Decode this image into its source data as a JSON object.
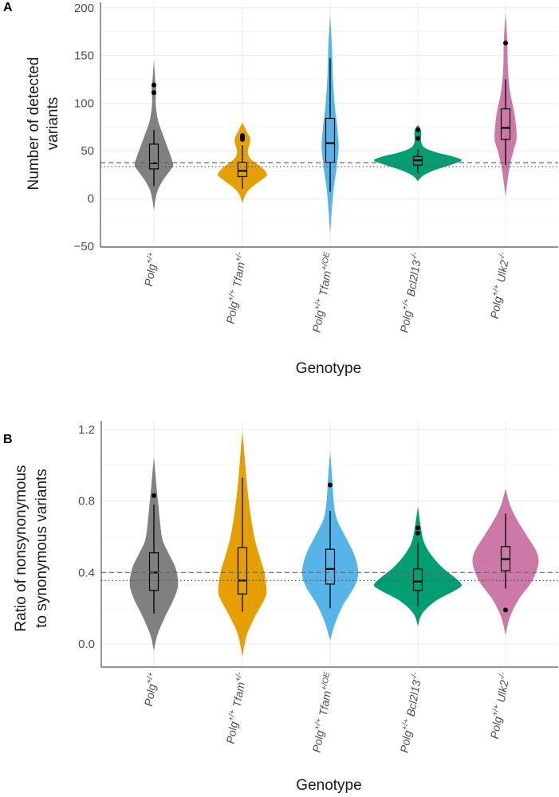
{
  "chart_data": [
    {
      "panel_label": "A",
      "type": "violin",
      "xlabel": "Genotype",
      "ylabel": [
        "Number of detected",
        "variants"
      ],
      "ylim": [
        -52,
        206
      ],
      "yticks": [
        -50,
        0,
        50,
        100,
        150,
        200
      ],
      "grid": true,
      "reference_lines": [
        {
          "style": "dashed",
          "y": 37.5
        },
        {
          "style": "dotted",
          "y": 33.4
        }
      ],
      "categories": [
        [
          {
            "t": "Polg"
          },
          {
            "t": "+/+",
            "sup": true
          }
        ],
        [
          {
            "t": "Polg"
          },
          {
            "t": "+/+",
            "sup": true
          },
          {
            "t": " Tfam"
          },
          {
            "t": "+/-",
            "sup": true
          }
        ],
        [
          {
            "t": "Polg"
          },
          {
            "t": "+/+",
            "sup": true
          },
          {
            "t": " Tfam"
          },
          {
            "t": "+/OE",
            "sup": true
          }
        ],
        [
          {
            "t": "Polg"
          },
          {
            "t": "+/+",
            "sup": true
          },
          {
            "t": " Bcl2l13"
          },
          {
            "t": "-/-",
            "sup": true
          }
        ],
        [
          {
            "t": "Polg"
          },
          {
            "t": "+/+",
            "sup": true
          },
          {
            "t": " Ulk2"
          },
          {
            "t": "-/-",
            "sup": true
          }
        ]
      ],
      "series": [
        {
          "color": "#808080",
          "density": [
            [
              -13,
              0
            ],
            [
              0,
              0.04
            ],
            [
              10,
              0.1
            ],
            [
              20,
              0.22
            ],
            [
              30,
              0.38
            ],
            [
              35,
              0.44
            ],
            [
              45,
              0.38
            ],
            [
              55,
              0.3
            ],
            [
              65,
              0.22
            ],
            [
              75,
              0.14
            ],
            [
              85,
              0.08
            ],
            [
              100,
              0.04
            ],
            [
              115,
              0.05
            ],
            [
              125,
              0.03
            ],
            [
              145,
              0
            ]
          ],
          "box": {
            "whisker_low": 13,
            "q1": 31,
            "median": 37,
            "q3": 57,
            "whisker_high": 72
          },
          "outliers": [
            111,
            119
          ]
        },
        {
          "color": "#E69F00",
          "density": [
            [
              -5,
              0
            ],
            [
              5,
              0.08
            ],
            [
              12,
              0.22
            ],
            [
              20,
              0.45
            ],
            [
              25,
              0.56
            ],
            [
              32,
              0.45
            ],
            [
              40,
              0.22
            ],
            [
              46,
              0.13
            ],
            [
              52,
              0.13
            ],
            [
              58,
              0.17
            ],
            [
              64,
              0.17
            ],
            [
              70,
              0.1
            ],
            [
              80,
              0
            ]
          ],
          "box": {
            "whisker_low": 10,
            "q1": 23,
            "median": 29,
            "q3": 38,
            "whisker_high": 56
          },
          "outliers": [
            62,
            64,
            66
          ]
        },
        {
          "color": "#56B4E9",
          "density": [
            [
              -38,
              0
            ],
            [
              -10,
              0.04
            ],
            [
              10,
              0.08
            ],
            [
              30,
              0.14
            ],
            [
              50,
              0.19
            ],
            [
              60,
              0.19
            ],
            [
              80,
              0.15
            ],
            [
              100,
              0.1
            ],
            [
              130,
              0.06
            ],
            [
              160,
              0.04
            ],
            [
              193,
              0
            ]
          ],
          "box": {
            "whisker_low": 7,
            "q1": 38,
            "median": 58,
            "q3": 84,
            "whisker_high": 147
          },
          "outliers": []
        },
        {
          "color": "#009E73",
          "density": [
            [
              18,
              0
            ],
            [
              24,
              0.12
            ],
            [
              30,
              0.4
            ],
            [
              36,
              0.8
            ],
            [
              40,
              1.0
            ],
            [
              44,
              0.8
            ],
            [
              48,
              0.45
            ],
            [
              52,
              0.2
            ],
            [
              56,
              0.1
            ],
            [
              62,
              0.07
            ],
            [
              68,
              0.08
            ],
            [
              73,
              0.06
            ],
            [
              77,
              0
            ]
          ],
          "box": {
            "whisker_low": 26,
            "q1": 35,
            "median": 40,
            "q3": 44,
            "whisker_high": 52
          },
          "outliers": [
            63,
            72
          ]
        },
        {
          "color": "#CC79A7",
          "density": [
            [
              2,
              0
            ],
            [
              20,
              0.05
            ],
            [
              35,
              0.1
            ],
            [
              50,
              0.18
            ],
            [
              62,
              0.25
            ],
            [
              75,
              0.24
            ],
            [
              90,
              0.2
            ],
            [
              105,
              0.13
            ],
            [
              120,
              0.08
            ],
            [
              140,
              0.05
            ],
            [
              165,
              0.04
            ],
            [
              195,
              0
            ]
          ],
          "box": {
            "whisker_low": 35,
            "q1": 62,
            "median": 74,
            "q3": 94,
            "whisker_high": 125
          },
          "outliers": [
            163
          ]
        }
      ]
    },
    {
      "panel_label": "B",
      "type": "violin",
      "xlabel": "Genotype",
      "ylabel": [
        "Ratio of nonsynonymous",
        "to synonymous variants"
      ],
      "ylim": [
        -0.13,
        1.25
      ],
      "yticks": [
        0.0,
        0.4,
        0.8,
        1.2
      ],
      "ytick_labels": [
        "0.0",
        "0.4",
        "0.8",
        "1.2"
      ],
      "grid": true,
      "reference_lines": [
        {
          "style": "dashed",
          "y": 0.4
        },
        {
          "style": "dotted",
          "y": 0.355
        }
      ],
      "categories": [
        [
          {
            "t": "Polg"
          },
          {
            "t": "+/+",
            "sup": true
          }
        ],
        [
          {
            "t": "Polg"
          },
          {
            "t": "+/+",
            "sup": true
          },
          {
            "t": " Tfam"
          },
          {
            "t": "+/-",
            "sup": true
          }
        ],
        [
          {
            "t": "Polg"
          },
          {
            "t": "+/+",
            "sup": true
          },
          {
            "t": " Tfam"
          },
          {
            "t": "+/OE",
            "sup": true
          }
        ],
        [
          {
            "t": "Polg"
          },
          {
            "t": "+/+",
            "sup": true
          },
          {
            "t": " Bcl2l13"
          },
          {
            "t": "-/-",
            "sup": true
          }
        ],
        [
          {
            "t": "Polg"
          },
          {
            "t": "+/+",
            "sup": true
          },
          {
            "t": " Ulk2"
          },
          {
            "t": "-/-",
            "sup": true
          }
        ]
      ],
      "series": [
        {
          "color": "#808080",
          "density": [
            [
              -0.04,
              0
            ],
            [
              0.05,
              0.08
            ],
            [
              0.15,
              0.25
            ],
            [
              0.25,
              0.45
            ],
            [
              0.33,
              0.55
            ],
            [
              0.42,
              0.5
            ],
            [
              0.5,
              0.35
            ],
            [
              0.58,
              0.2
            ],
            [
              0.68,
              0.14
            ],
            [
              0.78,
              0.1
            ],
            [
              0.88,
              0.06
            ],
            [
              1.05,
              0
            ]
          ],
          "box": {
            "whisker_low": 0.17,
            "q1": 0.3,
            "median": 0.4,
            "q3": 0.51,
            "whisker_high": 0.78
          },
          "outliers": [
            0.83
          ]
        },
        {
          "color": "#E69F00",
          "density": [
            [
              -0.07,
              0
            ],
            [
              0.05,
              0.1
            ],
            [
              0.15,
              0.28
            ],
            [
              0.25,
              0.5
            ],
            [
              0.3,
              0.55
            ],
            [
              0.4,
              0.5
            ],
            [
              0.5,
              0.38
            ],
            [
              0.6,
              0.27
            ],
            [
              0.75,
              0.17
            ],
            [
              0.9,
              0.1
            ],
            [
              1.05,
              0.05
            ],
            [
              1.19,
              0
            ]
          ],
          "box": {
            "whisker_low": 0.18,
            "q1": 0.28,
            "median": 0.355,
            "q3": 0.54,
            "whisker_high": 0.93
          },
          "outliers": []
        },
        {
          "color": "#56B4E9",
          "density": [
            [
              0.02,
              0
            ],
            [
              0.12,
              0.12
            ],
            [
              0.22,
              0.3
            ],
            [
              0.32,
              0.55
            ],
            [
              0.4,
              0.64
            ],
            [
              0.5,
              0.55
            ],
            [
              0.6,
              0.35
            ],
            [
              0.7,
              0.15
            ],
            [
              0.8,
              0.08
            ],
            [
              0.92,
              0.05
            ],
            [
              1.08,
              0
            ]
          ],
          "box": {
            "whisker_low": 0.2,
            "q1": 0.335,
            "median": 0.42,
            "q3": 0.53,
            "whisker_high": 0.745
          },
          "outliers": [
            0.89
          ]
        },
        {
          "color": "#009E73",
          "density": [
            [
              0.1,
              0
            ],
            [
              0.17,
              0.1
            ],
            [
              0.24,
              0.4
            ],
            [
              0.3,
              0.85
            ],
            [
              0.33,
              1.0
            ],
            [
              0.37,
              0.85
            ],
            [
              0.43,
              0.55
            ],
            [
              0.5,
              0.3
            ],
            [
              0.57,
              0.14
            ],
            [
              0.65,
              0.07
            ],
            [
              0.77,
              0
            ]
          ],
          "box": {
            "whisker_low": 0.21,
            "q1": 0.3,
            "median": 0.35,
            "q3": 0.42,
            "whisker_high": 0.57
          },
          "outliers": [
            0.62,
            0.65
          ]
        },
        {
          "color": "#CC79A7",
          "density": [
            [
              0.05,
              0
            ],
            [
              0.15,
              0.1
            ],
            [
              0.25,
              0.3
            ],
            [
              0.35,
              0.6
            ],
            [
              0.45,
              0.75
            ],
            [
              0.52,
              0.7
            ],
            [
              0.6,
              0.5
            ],
            [
              0.7,
              0.25
            ],
            [
              0.78,
              0.1
            ],
            [
              0.87,
              0
            ]
          ],
          "box": {
            "whisker_low": 0.31,
            "q1": 0.41,
            "median": 0.475,
            "q3": 0.545,
            "whisker_high": 0.73
          },
          "outliers": [
            0.19
          ]
        }
      ]
    }
  ]
}
